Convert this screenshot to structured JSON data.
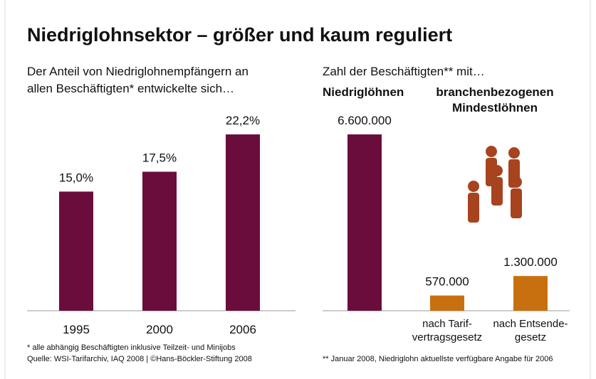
{
  "title": "Niedriglohnsektor – größer und kaum reguliert",
  "chart_data": [
    {
      "type": "bar",
      "subtitle": "Der Anteil von Niedriglohnempfängern an\nallen Beschäftigten* entwickelte sich…",
      "categories": [
        "1995",
        "2000",
        "2006"
      ],
      "values": [
        15.0,
        17.5,
        22.2
      ],
      "value_labels": [
        "15,0%",
        "17,5%",
        "22,2%"
      ],
      "color": "#6b0d3c",
      "footnote": "* alle abhängig Beschäftigten inklusive Teilzeit- und Minijobs",
      "source": "Quelle: WSI-Tarifarchiv, IAQ 2008 | ©Hans-Böckler-Stiftung 2008"
    },
    {
      "type": "bar",
      "subtitle": "Zahl der Beschäftigten** mit…",
      "categories": [
        null,
        "nach Tarif-\nvertragsgesetz",
        "nach Entsende-\ngesetz"
      ],
      "series": [
        {
          "name": "Niedriglöhnen",
          "color": "#6b0d3c",
          "values": [
            6600000,
            null,
            null
          ],
          "value_labels": [
            "6.600.000",
            null,
            null
          ]
        },
        {
          "name": "branchenbezogenen\nMindestlöhnen",
          "color": "#c8700f",
          "values": [
            null,
            570000,
            1300000
          ],
          "value_labels": [
            null,
            "570.000",
            "1.300.000"
          ]
        }
      ],
      "footnote": "** Januar 2008, Niedriglohn aktuellste verfügbare Angabe für 2006"
    }
  ]
}
